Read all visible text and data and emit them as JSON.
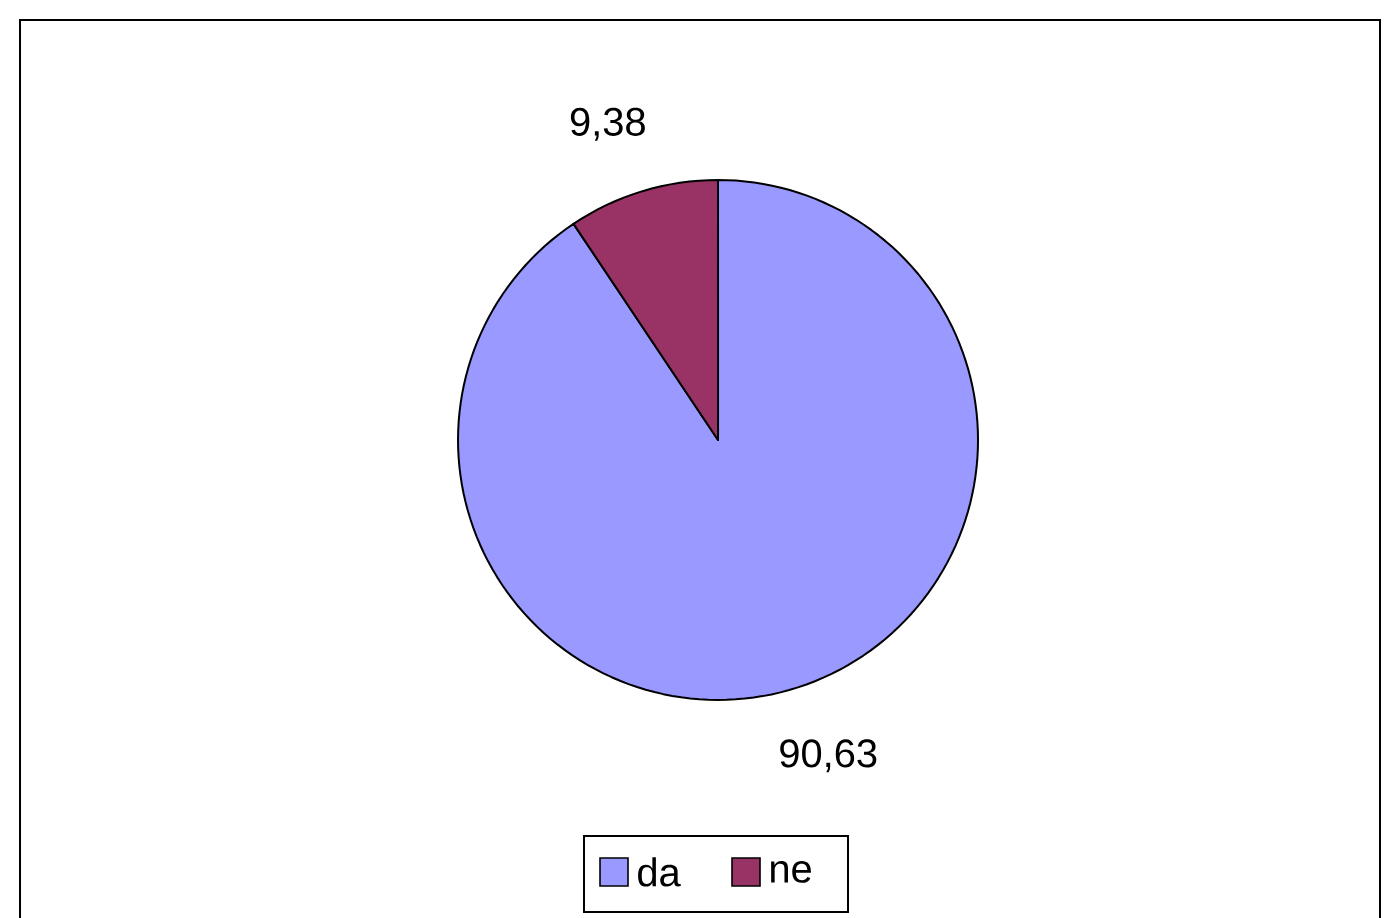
{
  "chart_data": {
    "type": "pie",
    "categories": [
      "da",
      "ne"
    ],
    "values": [
      90.63,
      9.38
    ],
    "value_labels": [
      "90,63",
      "9,38"
    ],
    "colors": [
      "#9999ff",
      "#993366"
    ],
    "legend": "bottom"
  }
}
